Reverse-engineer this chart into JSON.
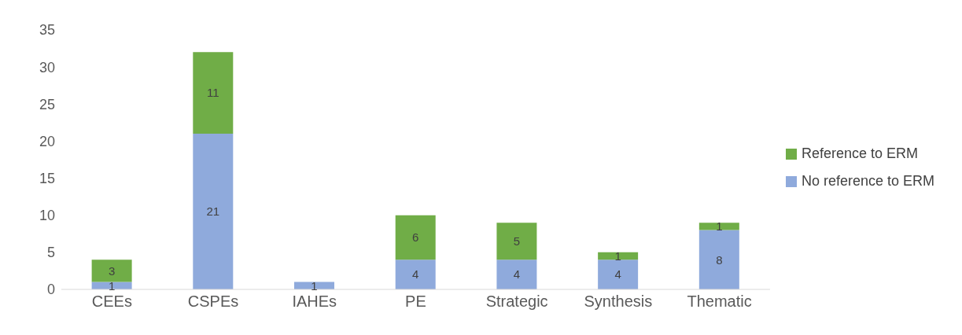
{
  "chart_data": {
    "type": "bar",
    "stacked": true,
    "categories": [
      "CEEs",
      "CSPEs",
      "IAHEs",
      "PE",
      "Strategic",
      "Synthesis",
      "Thematic"
    ],
    "series": [
      {
        "name": "No reference to ERM",
        "color": "#8faadc",
        "values": [
          1,
          21,
          1,
          4,
          4,
          4,
          8
        ]
      },
      {
        "name": "Reference to ERM",
        "color": "#70ad47",
        "values": [
          3,
          11,
          null,
          6,
          5,
          1,
          1
        ]
      }
    ],
    "ylim": [
      0,
      35
    ],
    "yticks": [
      0,
      5,
      10,
      15,
      20,
      25,
      30,
      35
    ],
    "grid": false,
    "legend": "right",
    "data_labels": true
  }
}
